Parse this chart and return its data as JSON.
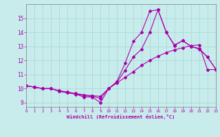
{
  "xlabel": "Windchill (Refroidissement éolien,°C)",
  "bg_color": "#c8ecec",
  "line_color": "#aa00aa",
  "grid_color": "#a8d4d4",
  "xlim": [
    0,
    23
  ],
  "ylim": [
    8.7,
    16.0
  ],
  "xticks": [
    0,
    1,
    2,
    3,
    4,
    5,
    6,
    7,
    8,
    9,
    10,
    11,
    12,
    13,
    14,
    15,
    16,
    17,
    18,
    19,
    20,
    21,
    22,
    23
  ],
  "yticks": [
    9,
    10,
    11,
    12,
    13,
    14,
    15
  ],
  "curve1_x": [
    0,
    1,
    2,
    3,
    4,
    5,
    6,
    7,
    8,
    9,
    10,
    11,
    12,
    13,
    14,
    15,
    16,
    17,
    18,
    19,
    20,
    21,
    22,
    23
  ],
  "curve1_y": [
    10.2,
    10.1,
    10.0,
    10.0,
    9.8,
    9.7,
    9.6,
    9.4,
    9.4,
    9.0,
    10.0,
    10.5,
    11.8,
    13.35,
    14.0,
    15.5,
    15.6,
    14.0,
    13.1,
    13.4,
    13.0,
    12.8,
    12.25,
    11.4
  ],
  "curve2_x": [
    0,
    1,
    2,
    3,
    4,
    5,
    6,
    7,
    8,
    9,
    10,
    11,
    12,
    13,
    14,
    15,
    16,
    17,
    18,
    19,
    20,
    21,
    22,
    23
  ],
  "curve2_y": [
    10.2,
    10.1,
    10.0,
    10.0,
    9.85,
    9.75,
    9.65,
    9.55,
    9.5,
    9.45,
    10.0,
    10.4,
    10.8,
    11.2,
    11.65,
    12.0,
    12.3,
    12.55,
    12.75,
    12.9,
    13.05,
    13.1,
    11.35,
    11.35
  ],
  "curve3_x": [
    0,
    1,
    2,
    3,
    4,
    5,
    6,
    7,
    8,
    9,
    10,
    11,
    12,
    13,
    14,
    15,
    16,
    17,
    18,
    19,
    20,
    21,
    22,
    23
  ],
  "curve3_y": [
    10.2,
    10.1,
    10.0,
    10.0,
    9.82,
    9.72,
    9.62,
    9.5,
    9.46,
    9.3,
    10.0,
    10.45,
    11.3,
    12.25,
    12.8,
    14.0,
    15.6,
    14.0,
    13.05,
    13.42,
    13.0,
    12.85,
    12.25,
    11.4
  ]
}
